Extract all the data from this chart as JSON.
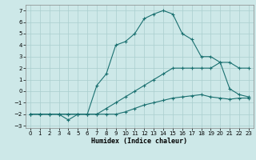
{
  "xlabel": "Humidex (Indice chaleur)",
  "bg_color": "#cde8e8",
  "grid_color": "#aacece",
  "line_color": "#1a7070",
  "xlim": [
    -0.5,
    23.5
  ],
  "ylim": [
    -3.2,
    7.5
  ],
  "xticks": [
    0,
    1,
    2,
    3,
    4,
    5,
    6,
    7,
    8,
    9,
    10,
    11,
    12,
    13,
    14,
    15,
    16,
    17,
    18,
    19,
    20,
    21,
    22,
    23
  ],
  "yticks": [
    -3,
    -2,
    -1,
    0,
    1,
    2,
    3,
    4,
    5,
    6,
    7
  ],
  "line1_x": [
    0,
    1,
    2,
    3,
    4,
    5,
    6,
    7,
    8,
    9,
    10,
    11,
    12,
    13,
    14,
    15,
    16,
    17,
    18,
    19,
    20,
    21,
    22,
    23
  ],
  "line1_y": [
    -2,
    -2,
    -2,
    -2,
    -2,
    -2,
    -2,
    -2,
    -2,
    -2,
    -1.8,
    -1.5,
    -1.2,
    -1.0,
    -0.8,
    -0.6,
    -0.5,
    -0.4,
    -0.3,
    -0.5,
    -0.6,
    -0.7,
    -0.6,
    -0.6
  ],
  "line2_x": [
    0,
    1,
    2,
    3,
    4,
    5,
    6,
    7,
    8,
    9,
    10,
    11,
    12,
    13,
    14,
    15,
    16,
    17,
    18,
    19,
    20,
    21,
    22,
    23
  ],
  "line2_y": [
    -2,
    -2,
    -2,
    -2,
    -2,
    -2,
    -2,
    -2,
    -1.5,
    -1.0,
    -0.5,
    0.0,
    0.5,
    1.0,
    1.5,
    2.0,
    2.0,
    2.0,
    2.0,
    2.0,
    2.5,
    2.5,
    2.0,
    2.0
  ],
  "line3_x": [
    0,
    1,
    2,
    3,
    4,
    5,
    6,
    7,
    8,
    9,
    10,
    11,
    12,
    13,
    14,
    15,
    16,
    17,
    18,
    19,
    20,
    21,
    22,
    23
  ],
  "line3_y": [
    -2,
    -2,
    -2,
    -2,
    -2.5,
    -2,
    -2,
    0.5,
    1.5,
    4.0,
    4.3,
    5.0,
    6.3,
    6.7,
    7.0,
    6.7,
    5.0,
    4.5,
    3.0,
    3.0,
    2.5,
    0.2,
    -0.3,
    -0.5
  ]
}
